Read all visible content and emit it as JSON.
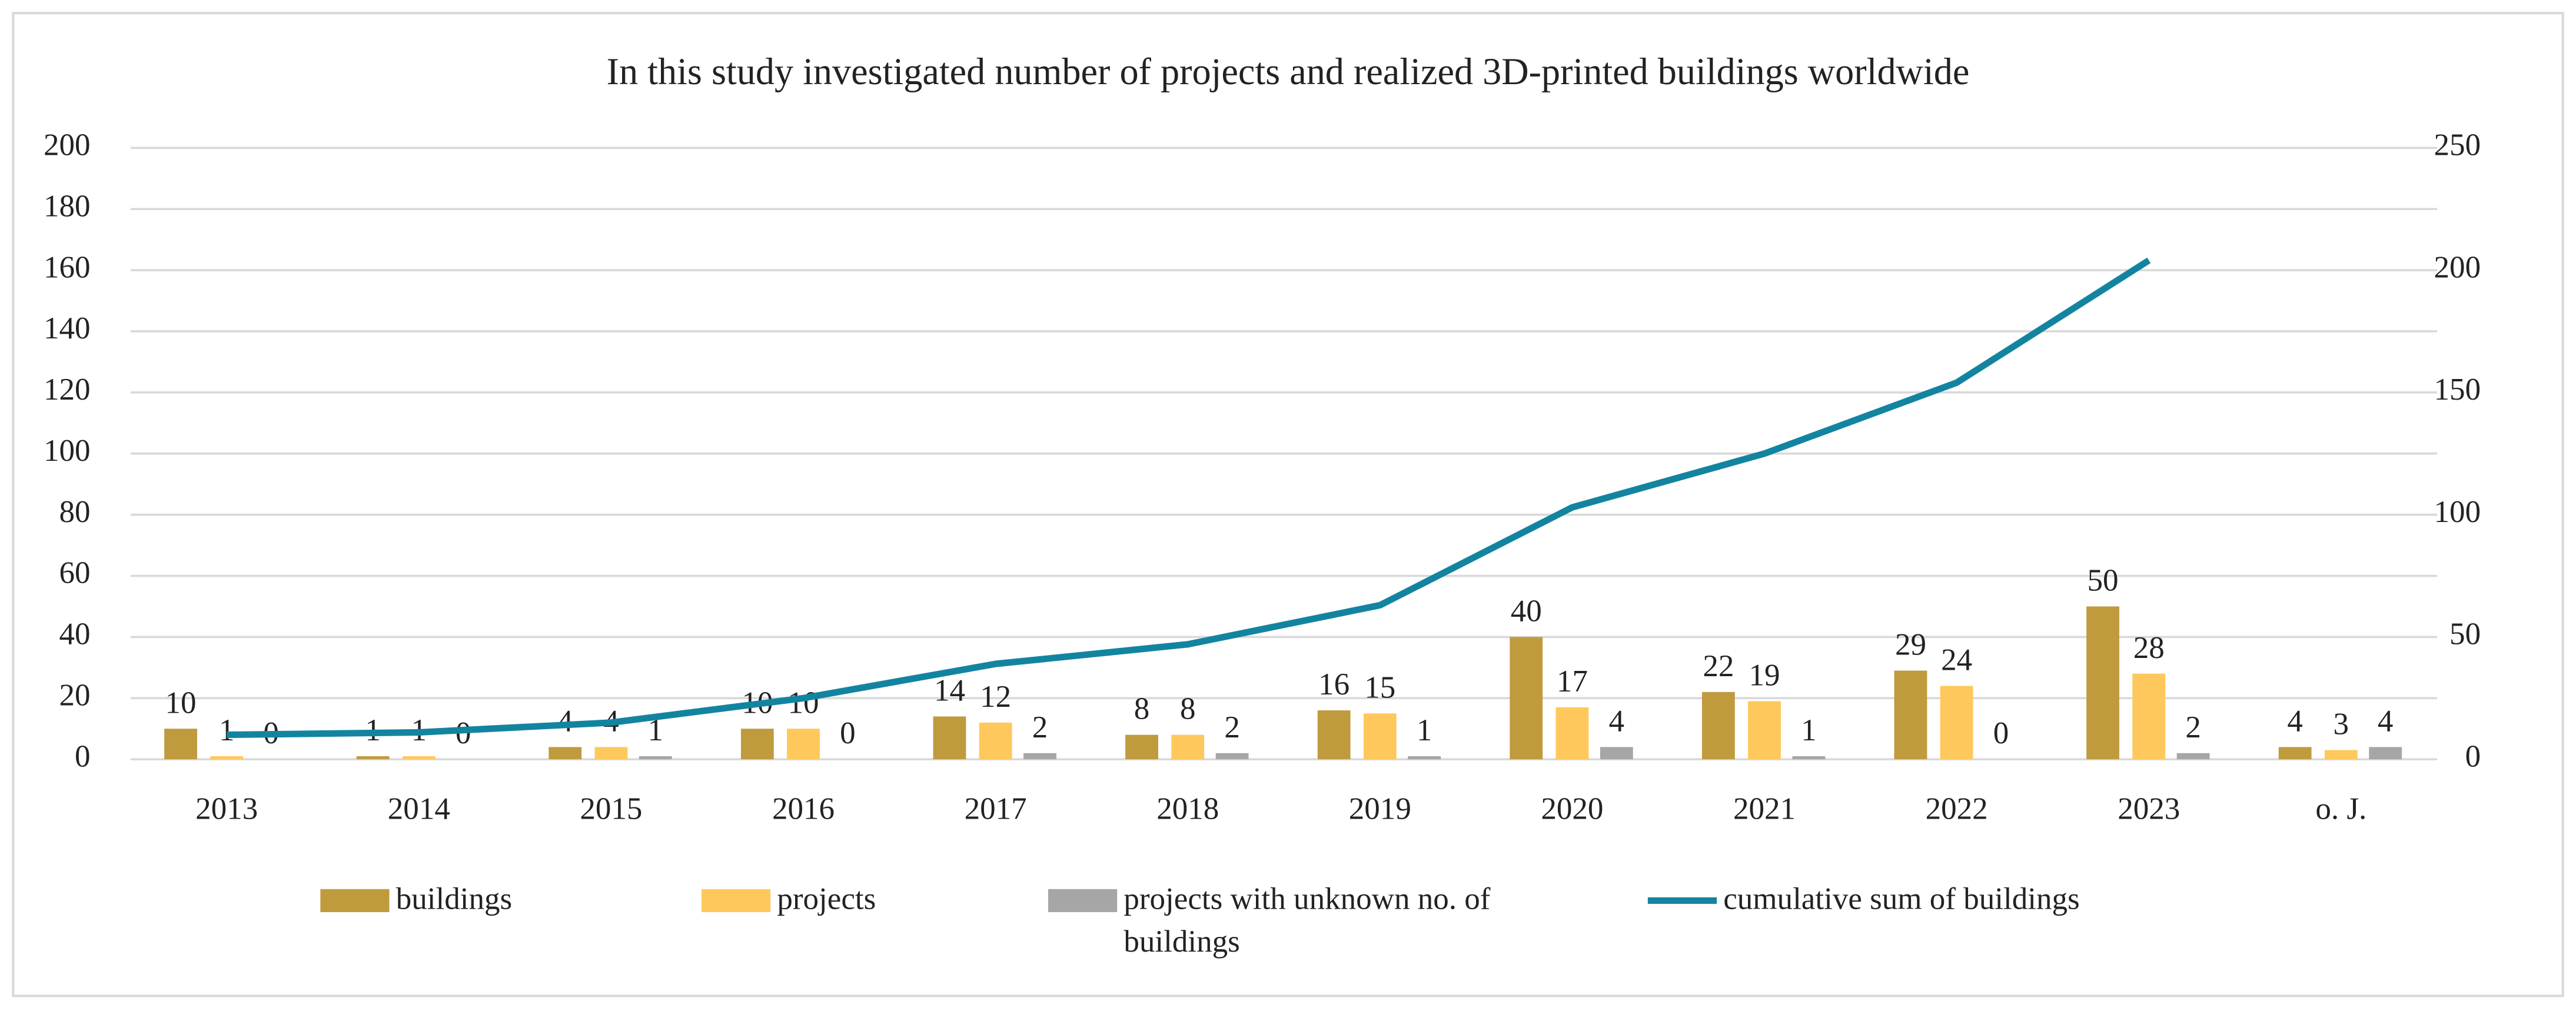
{
  "chart_data": {
    "type": "bar",
    "title": "In this study investigated number of projects and realized 3D-printed buildings worldwide",
    "categories": [
      "2013",
      "2014",
      "2015",
      "2016",
      "2017",
      "2018",
      "2019",
      "2020",
      "2021",
      "2022",
      "2023",
      "o. J."
    ],
    "series": [
      {
        "name": "buildings",
        "type": "bar",
        "color": "#bf9b3e",
        "values": [
          10,
          1,
          4,
          10,
          14,
          8,
          16,
          40,
          22,
          29,
          50,
          4
        ]
      },
      {
        "name": "projects",
        "type": "bar",
        "color": "#ffc85c",
        "values": [
          1,
          1,
          4,
          10,
          12,
          8,
          15,
          17,
          19,
          24,
          28,
          3
        ]
      },
      {
        "name": "projects with unknown no. of buildings",
        "type": "bar",
        "color": "#a6a6a6",
        "values": [
          0,
          0,
          1,
          0,
          2,
          2,
          1,
          4,
          1,
          0,
          2,
          4
        ]
      },
      {
        "name": "cumulative sum of buildings",
        "type": "line",
        "axis": "y2",
        "color": "#1384a0",
        "values": [
          10,
          11,
          15,
          25,
          39,
          47,
          63,
          103,
          125,
          154,
          204,
          null
        ]
      }
    ],
    "ylim": [
      0,
      200
    ],
    "yticks": [
      0,
      20,
      40,
      60,
      80,
      100,
      120,
      140,
      160,
      180,
      200
    ],
    "y2lim": [
      0,
      250
    ],
    "y2ticks": [
      0,
      50,
      100,
      150,
      200,
      250
    ],
    "grid": true,
    "legend": "bottom"
  }
}
